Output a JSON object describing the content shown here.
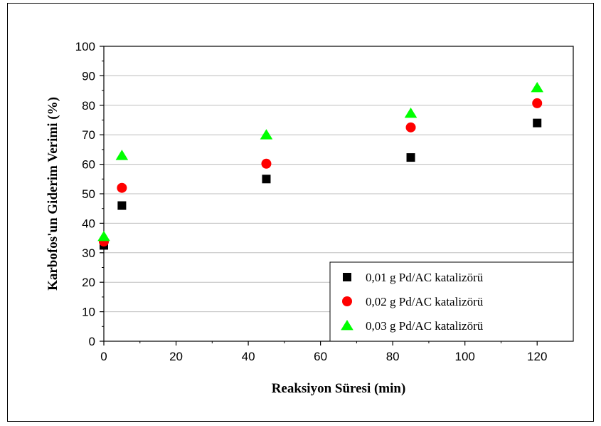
{
  "chart_data": {
    "type": "scatter",
    "title": "",
    "xlabel": "Reaksiyon Süresi (min)",
    "ylabel": "Karbofos'un Giderim Verimi (%)",
    "xlim": [
      0,
      130
    ],
    "ylim": [
      0,
      100
    ],
    "xticks": [
      0,
      20,
      40,
      60,
      80,
      100,
      120
    ],
    "yticks": [
      0,
      10,
      20,
      30,
      40,
      50,
      60,
      70,
      80,
      90,
      100
    ],
    "grid": "horizontal",
    "legend_position": "bottom-right",
    "series": [
      {
        "name": "0,01 g Pd/AC katalizörü",
        "marker": "square",
        "color": "#000000",
        "x": [
          0,
          5,
          45,
          85,
          120
        ],
        "y": [
          32.5,
          46,
          55,
          62.3,
          74
        ]
      },
      {
        "name": "0,02 g Pd/AC katalizörü",
        "marker": "circle",
        "color": "#ff0000",
        "x": [
          0,
          5,
          45,
          85,
          120
        ],
        "y": [
          33.8,
          52,
          60.2,
          72.5,
          80.7
        ]
      },
      {
        "name": "0,03 g Pd/AC katalizörü",
        "marker": "triangle",
        "color": "#00ff00",
        "x": [
          0,
          5,
          45,
          85,
          120
        ],
        "y": [
          35.5,
          63,
          70,
          77.3,
          86
        ]
      }
    ]
  }
}
